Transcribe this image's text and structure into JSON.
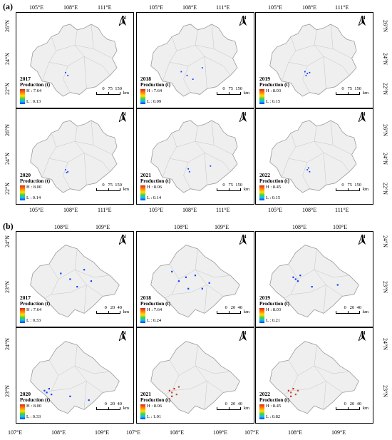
{
  "panels": {
    "a": "(a)",
    "b": "(b)"
  },
  "a_axes": {
    "lon": [
      "105°E",
      "108°E",
      "111°E"
    ],
    "lat": [
      "26°N",
      "24°N",
      "22°N"
    ]
  },
  "b_axes": {
    "lon_top": [
      "108°E",
      "109°E"
    ],
    "lon_bottom": [
      "107°E",
      "108°E",
      "109°E"
    ],
    "lat": [
      "24°N",
      "23°N"
    ]
  },
  "production_title": "Production (t)",
  "north_label": "N",
  "a_scale": {
    "nums": "0   75  150",
    "unit": "km"
  },
  "b_scale": {
    "nums": "0   20  40",
    "unit": "km"
  },
  "a_maps": [
    {
      "year": "2017",
      "high": "H : 7.64",
      "low": "L : 0.13"
    },
    {
      "year": "2018",
      "high": "H : 7.64",
      "low": "L : 0.09"
    },
    {
      "year": "2019",
      "high": "H : 8.03",
      "low": "L : 0.15"
    },
    {
      "year": "2020",
      "high": "H : 8.00",
      "low": "L : 0.14"
    },
    {
      "year": "2021",
      "high": "H : 8.06",
      "low": "L : 0.14"
    },
    {
      "year": "2022",
      "high": "H : 8.45",
      "low": "L : 0.15"
    }
  ],
  "b_maps": [
    {
      "year": "2017",
      "high": "H : 7.64",
      "low": "L : 0.33"
    },
    {
      "year": "2018",
      "high": "H : 7.64",
      "low": "L : 0.24"
    },
    {
      "year": "2019",
      "high": "H : 8.03",
      "low": "L : 0.21"
    },
    {
      "year": "2020",
      "high": "H : 8.00",
      "low": "L : 0.33"
    },
    {
      "year": "2021",
      "high": "H : 8.06",
      "low": "L : 1.01"
    },
    {
      "year": "2022",
      "high": "H : 8.45",
      "low": "L : 0.82"
    }
  ],
  "colors": {
    "region_fill": "#efefef",
    "boundary": "#9a9a9a",
    "low": "#1040ff",
    "high": "#e02020"
  }
}
